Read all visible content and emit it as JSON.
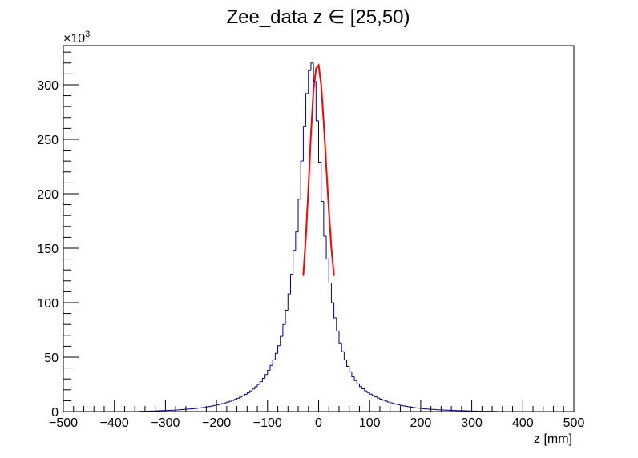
{
  "chart_data": {
    "type": "histogram",
    "title": "Zee_data z ∈ [25,50)",
    "xlabel": "z [mm]",
    "ylabel": "",
    "y_multiplier_label": "×10",
    "y_multiplier_exponent": "3",
    "xlim": [
      -500,
      500
    ],
    "ylim": [
      0,
      336
    ],
    "x_ticks": [
      -500,
      -400,
      -300,
      -200,
      -100,
      0,
      100,
      200,
      300,
      400,
      500
    ],
    "x_tick_labels": [
      "−500",
      "−400",
      "−300",
      "−200",
      "−100",
      "0",
      "100",
      "200",
      "300",
      "400",
      "500"
    ],
    "y_ticks": [
      0,
      50,
      100,
      150,
      200,
      250,
      300
    ],
    "y_tick_labels": [
      "0",
      "50",
      "100",
      "150",
      "200",
      "250",
      "300"
    ],
    "y_units_note": "values in thousands of entries",
    "bin_width": 5,
    "grid": false,
    "series": [
      {
        "name": "",
        "color": "#000080",
        "style": "step",
        "bin_centers": [
          -347.5,
          -342.5,
          -337.5,
          -332.5,
          -327.5,
          -322.5,
          -317.5,
          -312.5,
          -307.5,
          -302.5,
          -297.5,
          -292.5,
          -287.5,
          -282.5,
          -277.5,
          -272.5,
          -267.5,
          -262.5,
          -257.5,
          -252.5,
          -247.5,
          -242.5,
          -237.5,
          -232.5,
          -227.5,
          -222.5,
          -217.5,
          -212.5,
          -207.5,
          -202.5,
          -197.5,
          -192.5,
          -187.5,
          -182.5,
          -177.5,
          -172.5,
          -167.5,
          -162.5,
          -157.5,
          -152.5,
          -147.5,
          -142.5,
          -137.5,
          -132.5,
          -127.5,
          -122.5,
          -117.5,
          -112.5,
          -107.5,
          -102.5,
          -97.5,
          -92.5,
          -87.5,
          -82.5,
          -77.5,
          -72.5,
          -67.5,
          -62.5,
          -57.5,
          -52.5,
          -47.5,
          -42.5,
          -37.5,
          -32.5,
          -27.5,
          -22.5,
          -17.5,
          -12.5,
          -7.5,
          -2.5,
          2.5,
          7.5,
          12.5,
          17.5,
          22.5,
          27.5,
          32.5,
          37.5,
          42.5,
          47.5,
          52.5,
          57.5,
          62.5,
          67.5,
          72.5,
          77.5,
          82.5,
          87.5,
          92.5,
          97.5,
          102.5,
          107.5,
          112.5,
          117.5,
          122.5,
          127.5,
          132.5,
          137.5,
          142.5,
          147.5,
          152.5,
          157.5,
          162.5,
          167.5,
          172.5,
          177.5,
          182.5,
          187.5,
          192.5,
          197.5,
          202.5,
          207.5,
          212.5,
          217.5,
          222.5,
          227.5,
          232.5,
          237.5,
          242.5,
          247.5,
          252.5,
          257.5,
          262.5,
          267.5,
          272.5,
          277.5,
          282.5,
          287.5,
          292.5,
          297.5,
          302.5,
          307.5,
          312.5,
          317.5,
          322.5,
          327.5,
          332.5,
          337.5,
          342.5,
          347.5
        ],
        "values": [
          0.3,
          0.3,
          0.4,
          0.4,
          0.5,
          0.5,
          0.6,
          0.7,
          0.8,
          0.9,
          1.0,
          1.1,
          1.2,
          1.3,
          1.5,
          1.6,
          1.8,
          2.0,
          2.2,
          2.4,
          2.6,
          2.8,
          3.0,
          3.3,
          3.6,
          3.9,
          4.3,
          4.7,
          5.2,
          5.7,
          6.2,
          6.8,
          7.4,
          8.0,
          8.7,
          9.5,
          10.3,
          11.2,
          12.2,
          13.3,
          14.5,
          15.8,
          17.3,
          19.0,
          20.8,
          22.8,
          25.0,
          27.5,
          30.5,
          34.0,
          38.0,
          42.5,
          47.5,
          53.5,
          60.5,
          69.0,
          80.0,
          93.0,
          108.0,
          126.0,
          148.0,
          165.0,
          195.0,
          230.0,
          262.0,
          292.0,
          313.0,
          320.0,
          303.0,
          267.0,
          229.0,
          193.0,
          161.0,
          140.0,
          118.0,
          100.0,
          86.0,
          74.0,
          63.0,
          55.0,
          47.5,
          41.5,
          36.5,
          32.0,
          28.5,
          25.5,
          23.0,
          21.0,
          19.0,
          17.5,
          16.0,
          14.7,
          13.5,
          12.4,
          11.4,
          10.5,
          9.6,
          8.8,
          8.1,
          7.4,
          6.8,
          6.2,
          5.7,
          5.2,
          4.8,
          4.4,
          4.0,
          3.7,
          3.4,
          3.1,
          2.9,
          2.6,
          2.4,
          2.2,
          2.0,
          1.9,
          1.7,
          1.6,
          1.5,
          1.4,
          1.3,
          1.2,
          1.1,
          1.0,
          0.9,
          0.8,
          0.8,
          0.7,
          0.6,
          0.6,
          0.5,
          0.5,
          0.4,
          0.4,
          0.3,
          0.3,
          0.3,
          0.2,
          0.2,
          0.2
        ]
      },
      {
        "name": "",
        "color": "#ff0000",
        "style": "line",
        "x": [
          -30,
          -25,
          -20,
          -15,
          -10,
          -5,
          0,
          5,
          10,
          15,
          20,
          25,
          30
        ],
        "values": [
          125.0,
          160.0,
          205.0,
          255.0,
          295.0,
          315.0,
          318.0,
          300.0,
          265.0,
          225.0,
          185.0,
          150.0,
          125.0
        ]
      }
    ]
  }
}
